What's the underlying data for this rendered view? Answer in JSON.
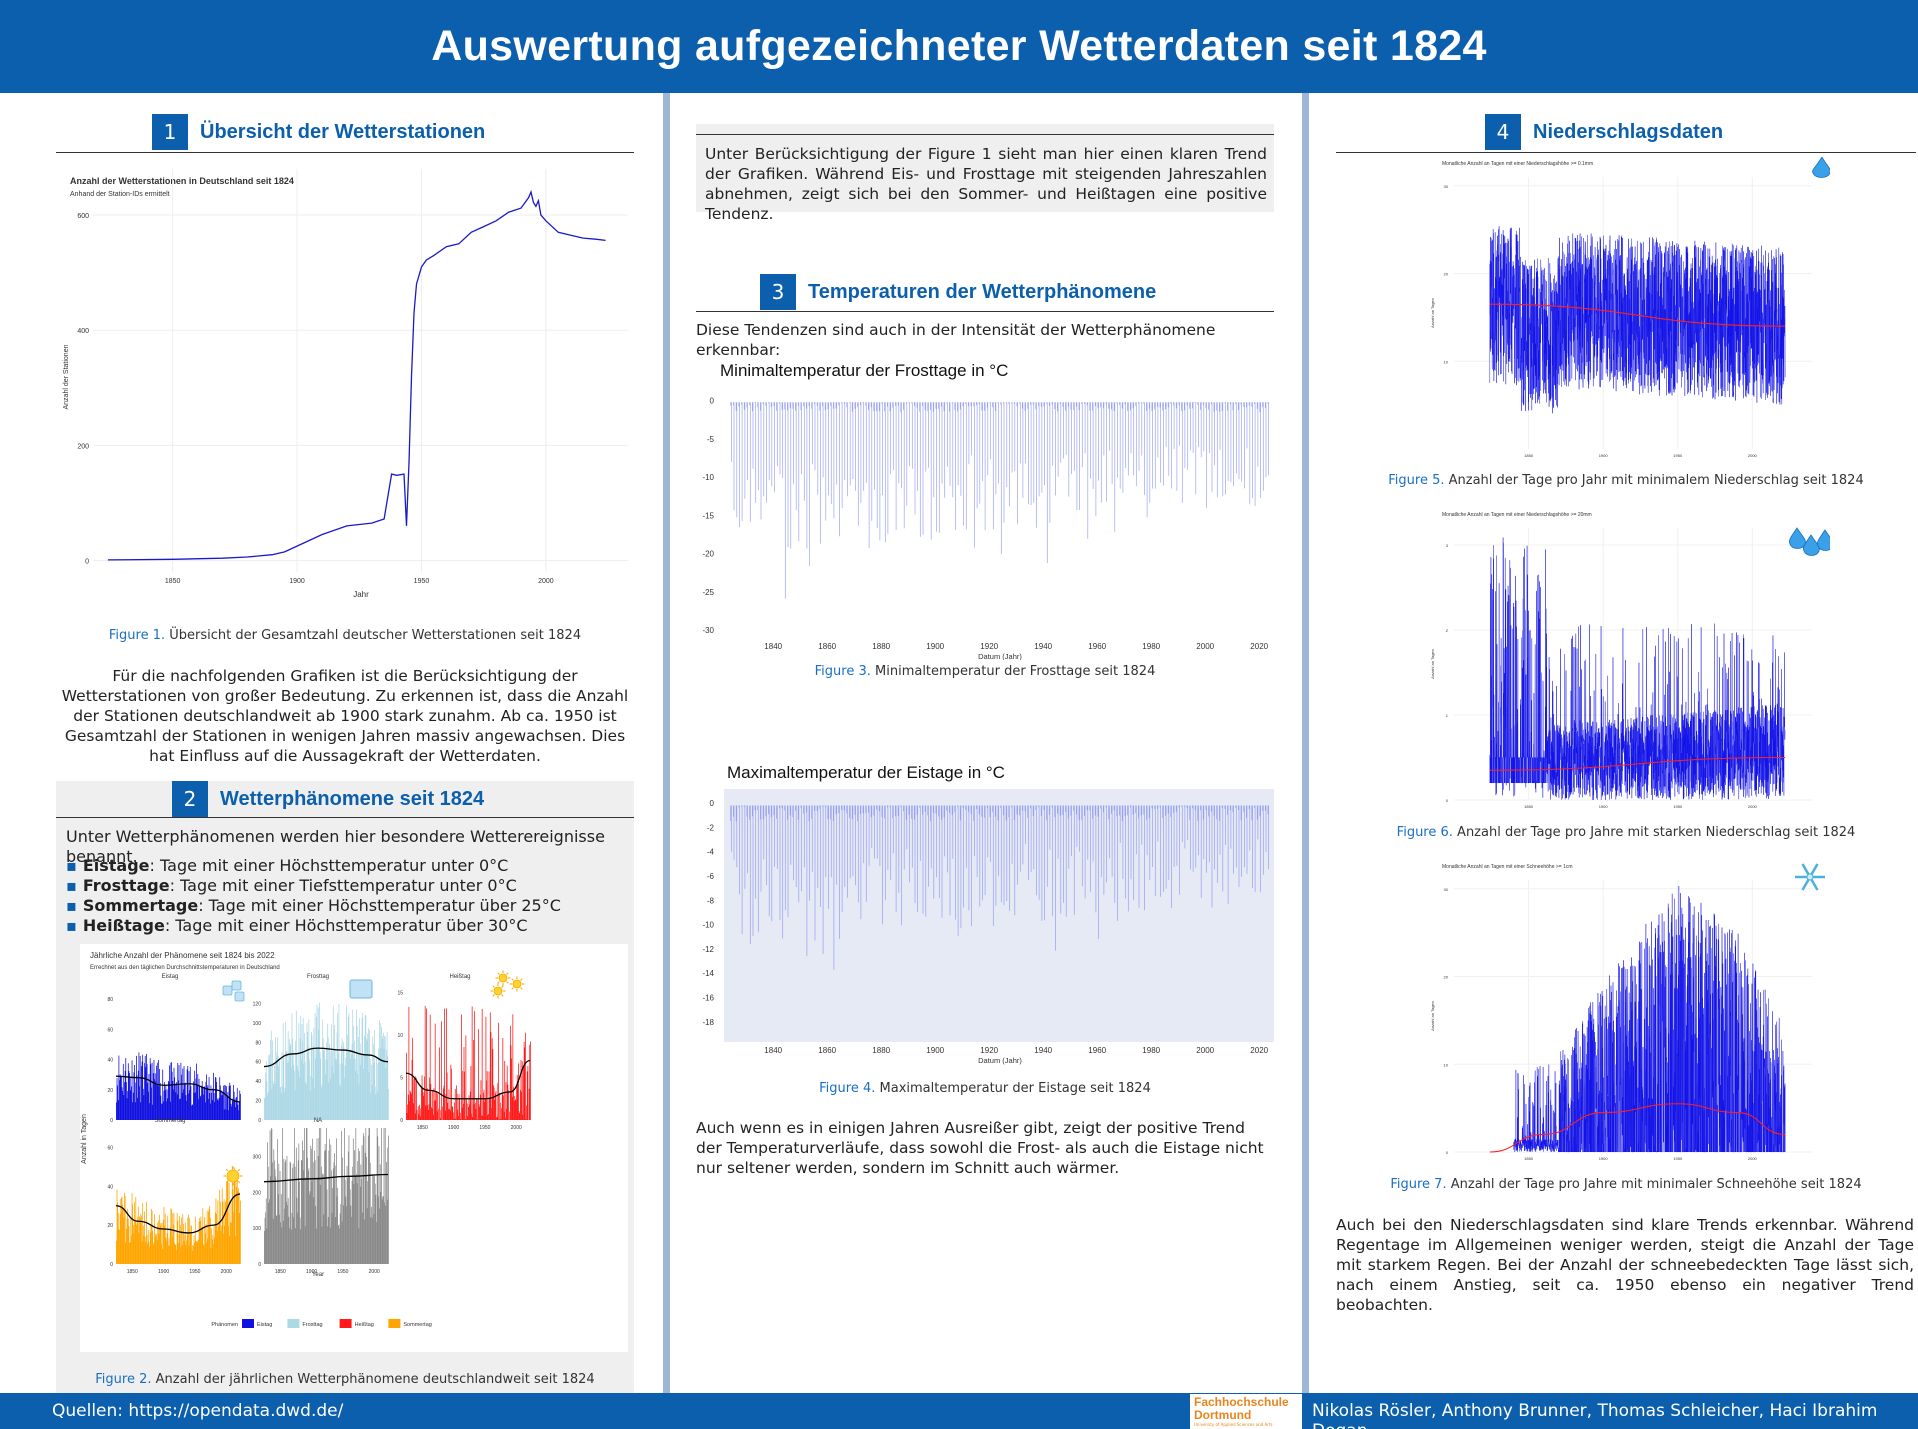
{
  "header": {
    "title": "Auswertung aufgezeichneter Wetterdaten seit 1824"
  },
  "footer": {
    "sources": "Quellen: https://opendata.dwd.de/",
    "logo_line1": "Fachhochschule",
    "logo_line2": "Dortmund",
    "logo_line3": "University of Applied Sciences and Arts",
    "authors": "Nikolas Rösler, Anthony Brunner, Thomas Schleicher, Haci Ibrahim Dogan"
  },
  "section1": {
    "number": "1",
    "title": "Übersicht der Wetterstationen",
    "caption_label": "Figure 1.",
    "caption_text": "Übersicht der Gesamtzahl deutscher Wetterstationen seit 1824",
    "paragraph": "Für die nachfolgenden Grafiken ist die Berücksichtigung der Wetterstationen von großer Bedeutung. Zu erkennen ist, dass die Anzahl der Stationen deutschlandweit ab 1900 stark zunahm. Ab ca. 1950 ist Gesamtzahl der Stationen in wenigen Jahren massiv angewachsen. Dies hat Einfluss auf die Aussagekraft der Wetterdaten."
  },
  "section2": {
    "number": "2",
    "title": "Wetterphänomene seit 1824",
    "intro": "Unter Wetterphänomenen werden hier besondere Wetterereignisse benannt.",
    "items": [
      {
        "term": "Eistage",
        "text": ": Tage mit einer Höchsttemperatur unter 0°C"
      },
      {
        "term": "Frosttage",
        "text": ": Tage mit einer Tiefsttemperatur unter 0°C"
      },
      {
        "term": "Sommertage",
        "text": ": Tage mit einer Höchsttemperatur über 25°C"
      },
      {
        "term": "Heißtage",
        "text": ": Tage mit einer Höchsttemperatur über 30°C"
      }
    ],
    "caption_label": "Figure 2.",
    "caption_text": "Anzahl der jährlichen Wetterphänomene deutschlandweit seit 1824"
  },
  "section3": {
    "intro_box": "Unter Berücksichtigung der Figure 1 sieht man hier einen klaren Trend der Grafiken. Während Eis- und Frosttage mit steigenden Jahreszahlen abnehmen, zeigt sich bei den Sommer- und Heißtagen eine positive Tendenz.",
    "number": "3",
    "title": "Temperaturen der Wetterphänomene",
    "intro": "Diese Tendenzen sind auch in der Intensität der Wetterphänomene erkennbar:",
    "fig3_label": "Figure 3.",
    "fig3_text": "Minimaltemperatur der Frosttage seit 1824",
    "fig4_label": "Figure 4.",
    "fig4_text": "Maximaltemperatur der Eistage seit 1824",
    "paragraph": "Auch wenn es in einigen Jahren Ausreißer gibt, zeigt der positive Trend der Temperaturverläufe, dass sowohl die Frost- als auch die Eistage nicht nur seltener werden, sondern im Schnitt auch wärmer."
  },
  "section4": {
    "number": "4",
    "title": "Niederschlagsdaten",
    "fig5_label": "Figure 5.",
    "fig5_text": "Anzahl der Tage pro Jahr mit minimalem Niederschlag seit 1824",
    "fig6_label": "Figure 6.",
    "fig6_text": "Anzahl der Tage pro Jahre mit starken Niederschlag seit 1824",
    "fig7_label": "Figure 7.",
    "fig7_text": "Anzahl der Tage pro Jahre mit minimaler Schneehöhe seit 1824",
    "paragraph": "Auch bei den Niederschlagsdaten sind klare Trends erkennbar. Während Regentage im Allgemeinen weniger werden, steigt die Anzahl der Tage mit starkem Regen. Bei der Anzahl der schneebedeckten Tage lässt sich, nach einem Anstieg, seit ca. 1950 ebenso ein negativer Trend beobachten."
  },
  "colors": {
    "brand": "#0b5fad",
    "eistag": "#1010e0",
    "frosttag": "#add8e6",
    "heisstag": "#ff1a1a",
    "sommertag": "#ffa500"
  },
  "icons": [
    "raindrop-icon",
    "raindrops-icon",
    "snowflake-icon",
    "ice-cube-icon",
    "sun-icon"
  ],
  "chart_data": [
    {
      "id": "fig1",
      "type": "line",
      "title": "Anzahl der Wetterstationen in Deutschland seit 1824",
      "subtitle": "Anhand der Station-IDs ermittelt",
      "xlabel": "Jahr",
      "ylabel": "Anzahl der Stationen",
      "xlim": [
        1818,
        2033
      ],
      "ylim": [
        -20,
        680
      ],
      "xticks": [
        1850,
        1900,
        1950,
        2000
      ],
      "yticks": [
        0,
        200,
        400,
        600
      ],
      "x": [
        1824,
        1850,
        1870,
        1880,
        1890,
        1895,
        1900,
        1910,
        1920,
        1930,
        1935,
        1938,
        1940,
        1943,
        1944,
        1945,
        1946,
        1947,
        1948,
        1950,
        1952,
        1955,
        1960,
        1965,
        1970,
        1975,
        1980,
        1985,
        1990,
        1993,
        1994,
        1995,
        1996,
        1997,
        1998,
        2000,
        2005,
        2010,
        2015,
        2020,
        2024
      ],
      "y": [
        1,
        2,
        4,
        6,
        10,
        15,
        25,
        45,
        60,
        65,
        72,
        150,
        148,
        150,
        60,
        170,
        320,
        430,
        480,
        510,
        522,
        530,
        545,
        550,
        570,
        580,
        590,
        605,
        612,
        630,
        640,
        622,
        615,
        625,
        600,
        590,
        570,
        565,
        560,
        558,
        556
      ]
    },
    {
      "id": "fig2",
      "type": "bar",
      "title": "Jährliche Anzahl der Phänomene seit 1824 bis 2022",
      "subtitle": "Errechnet aus den täglichen Durchschnittstemperaturen in Deutschland",
      "ylabel": "Anzahl in Tagen",
      "xlabel": "Year",
      "legend_title": "Phänomen",
      "xticks": [
        1850,
        1900,
        1950,
        2000
      ],
      "panels": [
        {
          "name": "Eistag",
          "ylim": [
            0,
            90
          ],
          "yticks": [
            0,
            20,
            40,
            60,
            80
          ],
          "trend_x": [
            1824,
            1860,
            1900,
            1940,
            1980,
            2022
          ],
          "trend_y": [
            29,
            28,
            23,
            24,
            20,
            12
          ]
        },
        {
          "name": "Frosttag",
          "ylim": [
            0,
            140
          ],
          "yticks": [
            0,
            20,
            40,
            60,
            80,
            100,
            120
          ],
          "trend_x": [
            1824,
            1870,
            1910,
            1950,
            1990,
            2022
          ],
          "trend_y": [
            55,
            68,
            74,
            72,
            67,
            60
          ]
        },
        {
          "name": "Heißtag",
          "ylim": [
            0,
            16
          ],
          "yticks": [
            0,
            5,
            10,
            15
          ],
          "trend_x": [
            1824,
            1860,
            1900,
            1950,
            1990,
            2022
          ],
          "trend_y": [
            5.5,
            3.5,
            2.5,
            2.5,
            3.3,
            7
          ]
        },
        {
          "name": "Sommertag",
          "ylim": [
            0,
            70
          ],
          "yticks": [
            0,
            20,
            40,
            60
          ],
          "trend_x": [
            1824,
            1860,
            1900,
            1940,
            1980,
            2022
          ],
          "trend_y": [
            30,
            22,
            18,
            16,
            20,
            36
          ]
        },
        {
          "name": "NA",
          "ylim": [
            0,
            380
          ],
          "yticks": [
            0,
            100,
            200,
            300
          ],
          "trend_x": [
            1824,
            1900,
            1960,
            2022
          ],
          "trend_y": [
            230,
            238,
            245,
            250
          ]
        }
      ]
    },
    {
      "id": "fig3",
      "type": "line",
      "title": "Minimaltemperatur der Frosttage in °C",
      "xlabel": "Datum (Jahr)",
      "xlim": [
        1824,
        2024
      ],
      "ylim": [
        -30,
        1
      ],
      "xticks": [
        1840,
        1860,
        1880,
        1900,
        1920,
        1940,
        1960,
        1980,
        2000,
        2020
      ],
      "yticks": [
        0,
        -5,
        -10,
        -15,
        -20,
        -25,
        -30
      ]
    },
    {
      "id": "fig4",
      "type": "line",
      "title": "Maximaltemperatur der Eistage in °C",
      "xlabel": "Datum (Jahr)",
      "xlim": [
        1824,
        2024
      ],
      "ylim": [
        -19,
        0.5
      ],
      "xticks": [
        1840,
        1860,
        1880,
        1900,
        1920,
        1940,
        1960,
        1980,
        2000,
        2020
      ],
      "yticks": [
        0,
        -2,
        -4,
        -6,
        -8,
        -10,
        -12,
        -14,
        -16,
        -18
      ]
    },
    {
      "id": "fig5",
      "type": "line",
      "title": "Monatliche Anzahl an Tagen mit einer Niederschlagshöhe >= 0.1mm",
      "ylabel": "Anzahl an Tagen",
      "xticks": [
        1850,
        1900,
        1950,
        2000
      ],
      "yticks": [
        10,
        20,
        30
      ],
      "ylim": [
        0,
        31
      ],
      "trend_x": [
        1824,
        2022
      ],
      "trend_y": [
        16.5,
        14
      ]
    },
    {
      "id": "fig6",
      "type": "line",
      "title": "Monatliche Anzahl an Tagen mit einer Niederschlagshöhe >= 20mm",
      "ylabel": "Anzahl an Tagen",
      "xticks": [
        1850,
        1900,
        1950,
        2000
      ],
      "yticks": [
        0,
        1,
        2,
        3
      ],
      "ylim": [
        0,
        3.2
      ],
      "trend_x": [
        1824,
        2022
      ],
      "trend_y": [
        0.35,
        0.5
      ]
    },
    {
      "id": "fig7",
      "type": "line",
      "title": "Monatliche Anzahl an Tagen mit einer Schneehöhe >= 1cm",
      "ylabel": "Anzahl an Tagen",
      "xticks": [
        1850,
        1900,
        1950,
        2000
      ],
      "yticks": [
        0,
        10,
        20,
        30
      ],
      "ylim": [
        0,
        31
      ],
      "trend_x": [
        1824,
        1860,
        1900,
        1950,
        1990,
        2022
      ],
      "trend_y": [
        0,
        2,
        4.5,
        5.5,
        4.5,
        2
      ]
    }
  ]
}
